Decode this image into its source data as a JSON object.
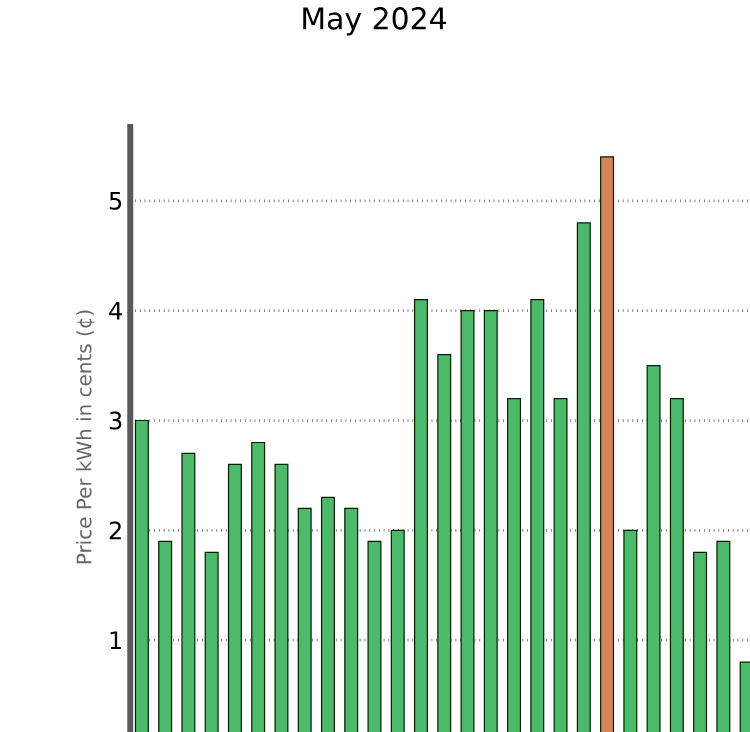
{
  "chart_data": {
    "type": "bar",
    "title": "May 2024",
    "ylabel": "Price Per kWh in cents (¢)",
    "categories": [
      null,
      null,
      null,
      null,
      null,
      null,
      null,
      null,
      null,
      null,
      null,
      null,
      null,
      null,
      null,
      null,
      null,
      null,
      null,
      null,
      null,
      null,
      null,
      null,
      null,
      null,
      null
    ],
    "values": [
      3.0,
      1.9,
      2.7,
      1.8,
      2.6,
      2.8,
      2.6,
      2.2,
      2.3,
      2.2,
      1.9,
      2.0,
      4.1,
      3.6,
      4.0,
      4.0,
      3.2,
      4.1,
      3.2,
      4.8,
      5.4,
      2.0,
      3.5,
      3.2,
      1.8,
      1.9,
      0.8
    ],
    "colors": [
      "#4cba6a",
      "#4cba6a",
      "#4cba6a",
      "#4cba6a",
      "#4cba6a",
      "#4cba6a",
      "#4cba6a",
      "#4cba6a",
      "#4cba6a",
      "#4cba6a",
      "#4cba6a",
      "#4cba6a",
      "#4cba6a",
      "#4cba6a",
      "#4cba6a",
      "#4cba6a",
      "#4cba6a",
      "#4cba6a",
      "#4cba6a",
      "#4cba6a",
      "#d4845a",
      "#4cba6a",
      "#4cba6a",
      "#4cba6a",
      "#4cba6a",
      "#4cba6a",
      "#4cba6a"
    ],
    "ylim": [
      0,
      5.7
    ],
    "yticks": [
      1,
      2,
      3,
      4,
      5
    ],
    "grid": "y",
    "tick_labels": "y"
  }
}
